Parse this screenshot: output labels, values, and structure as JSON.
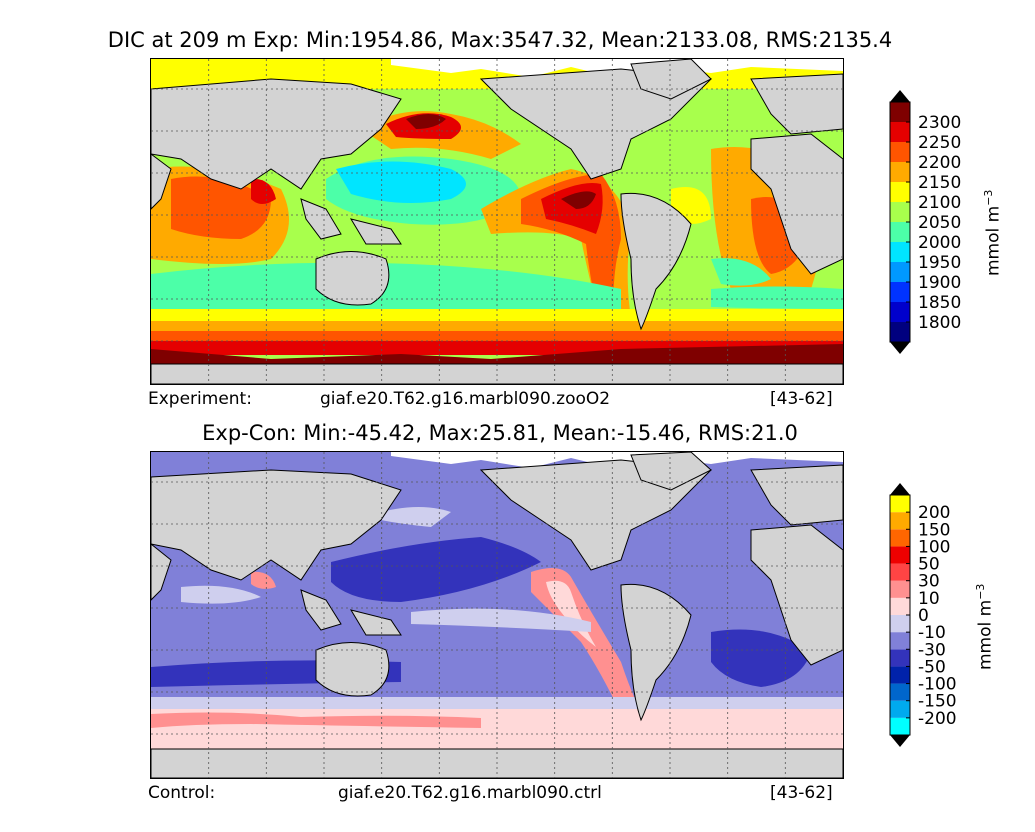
{
  "panels": [
    {
      "id": "experiment",
      "title": "DIC at 209 m Exp: Min:1954.86, Max:3547.32, Mean:2133.08, RMS:2135.4",
      "caption_label": "Experiment:",
      "caption_case": "giaf.e20.T62.g16.marbl090.zooO2",
      "caption_years": "[43-62]",
      "colorbar": {
        "unit_text": "mmol m",
        "unit_exp": "−3",
        "ticks": [
          "1800",
          "1850",
          "1900",
          "1950",
          "2000",
          "2050",
          "2100",
          "2150",
          "2200",
          "2250",
          "2300"
        ],
        "colors": [
          "#00007f",
          "#0000cc",
          "#0033ff",
          "#0099ff",
          "#00e5ff",
          "#4cffa8",
          "#a8ff4c",
          "#ffff00",
          "#ffaa00",
          "#ff5500",
          "#e50000",
          "#7f0000"
        ],
        "under_color": "#000000",
        "over_color": "#000000"
      }
    },
    {
      "id": "difference",
      "title": "Exp-Con: Min:-45.42, Max:25.81, Mean:-15.46, RMS:21.0",
      "caption_label": "Control:",
      "caption_case": "giaf.e20.T62.g16.marbl090.ctrl",
      "caption_years": "[43-62]",
      "colorbar": {
        "unit_text": "mmol m",
        "unit_exp": "−3",
        "ticks": [
          "-200",
          "-150",
          "-100",
          "-50",
          "-30",
          "-10",
          "0",
          "10",
          "30",
          "50",
          "100",
          "150",
          "200"
        ],
        "colors": [
          "#00ffff",
          "#00aaee",
          "#0066cc",
          "#0022aa",
          "#3333bb",
          "#8080d8",
          "#cfcfee",
          "#ffd9d9",
          "#ff9090",
          "#ff4444",
          "#ee0000",
          "#ff6600",
          "#ffaa00",
          "#ffff00"
        ],
        "under_color": "#000000",
        "over_color": "#000000"
      }
    }
  ],
  "map_colors": {
    "land": "#d3d3d3",
    "missing": "#ffffff",
    "grid": "#555555"
  }
}
